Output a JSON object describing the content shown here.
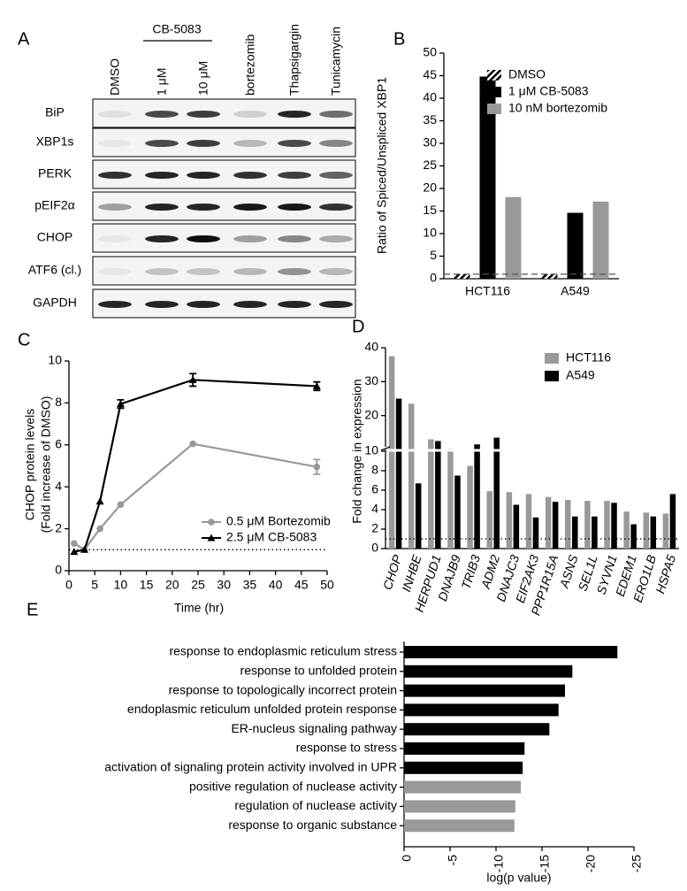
{
  "blot": {
    "label": "A",
    "group_label": "CB-5083",
    "columns": [
      "DMSO",
      "1 μM",
      "10 μM",
      "bortezomib",
      "Thapsigargin",
      "Tunicamycin"
    ],
    "rows": [
      "BiP",
      "XBP1s",
      "PERK",
      "pEIF2α",
      "CHOP",
      "ATF6 (cl.)",
      "GAPDH"
    ]
  },
  "chart_data": [
    {
      "type": "bar",
      "label": "B",
      "ylabel": "Ratio of Spiced/Unspliced XBP1",
      "categories": [
        "HCT116",
        "A549"
      ],
      "series": [
        {
          "name": "DMSO",
          "color": "#000000",
          "hatch": true,
          "values": [
            1,
            1
          ]
        },
        {
          "name": "1 μM CB-5083",
          "color": "#000000",
          "values": [
            44.8,
            14.6
          ]
        },
        {
          "name": "10 nM bortezomib",
          "color": "#999999",
          "values": [
            18.1,
            17.1
          ]
        }
      ],
      "ylim": [
        0,
        50
      ],
      "yticks": [
        0,
        5,
        10,
        15,
        20,
        25,
        30,
        35,
        40,
        45,
        50
      ],
      "reference_line": 1,
      "reference_style": "dashed",
      "grid": false
    },
    {
      "type": "line",
      "label": "C",
      "xlabel": "Time (hr)",
      "ylabel": [
        "CHOP protein levels",
        "(Fold increase of DMSO)"
      ],
      "x": [
        1,
        3,
        6,
        10,
        24,
        48
      ],
      "series": [
        {
          "name": "0.5 μM Bortezomib",
          "color": "#999999",
          "marker": "circle",
          "values": [
            1.3,
            1.0,
            2.0,
            3.15,
            6.05,
            4.95
          ],
          "errors": [
            0,
            0,
            0,
            0,
            0,
            0.35
          ]
        },
        {
          "name": "2.5 μM CB-5083",
          "color": "#000000",
          "marker": "triangle",
          "values": [
            0.9,
            1.0,
            3.3,
            7.95,
            9.1,
            8.8
          ],
          "errors": [
            0,
            0,
            0,
            0.2,
            0.3,
            0.2
          ]
        }
      ],
      "xlim": [
        0,
        50
      ],
      "xticks": [
        0,
        5,
        10,
        15,
        20,
        25,
        30,
        35,
        40,
        45,
        50
      ],
      "ylim": [
        0,
        10
      ],
      "yticks": [
        0,
        2,
        4,
        6,
        8,
        10
      ],
      "reference_line": 1,
      "reference_style": "dotted",
      "grid": false
    },
    {
      "type": "bar",
      "label": "D",
      "ylabel": "Fold change in expression",
      "categories": [
        "CHOP",
        "INHBE",
        "HERPUD1",
        "DNAJB9",
        "TRIB3",
        "ADM2",
        "DNAJC3",
        "EIF2AK3",
        "PPP1R15A",
        "ASNS",
        "SEL1L",
        "SYVN1",
        "EDEM1",
        "ERO1LB",
        "HSPA5"
      ],
      "series": [
        {
          "name": "HCT116",
          "color": "#999999",
          "values": [
            37.5,
            23.5,
            13,
            10.2,
            8.5,
            5.9,
            5.8,
            5.6,
            5.3,
            5.0,
            4.9,
            4.9,
            3.8,
            3.7,
            3.6
          ]
        },
        {
          "name": "A549",
          "color": "#000000",
          "values": [
            25,
            6.7,
            12.5,
            7.5,
            11.5,
            13.5,
            4.5,
            3.2,
            4.8,
            3.3,
            3.3,
            4.7,
            2.5,
            3.3,
            5.6
          ]
        }
      ],
      "ylim": [
        0,
        40
      ],
      "yticks": [
        0,
        2,
        4,
        6,
        8,
        10,
        20,
        30,
        40
      ],
      "y_break": 10,
      "reference_line": 1,
      "reference_style": "dotted",
      "grid": false
    },
    {
      "type": "barh",
      "label": "E",
      "xlabel": "log(p value)",
      "categories": [
        "response to endoplasmic reticulum stress",
        "response to unfolded protein",
        "response to topologically incorrect protein",
        "endoplasmic reticulum unfolded protein response",
        "ER-nucleus signaling pathway",
        "response to stress",
        "activation of signaling protein activity involved in UPR",
        "positive regulation of nuclease activity",
        "regulation of nuclease activity",
        "response to organic substance"
      ],
      "values": [
        -23.2,
        -18.3,
        -17.5,
        -16.8,
        -15.8,
        -13.1,
        -12.9,
        -12.7,
        -12.1,
        -12.0
      ],
      "colors": [
        "#000000",
        "#000000",
        "#000000",
        "#000000",
        "#000000",
        "#000000",
        "#000000",
        "#999999",
        "#999999",
        "#999999"
      ],
      "xlim": [
        0,
        -25
      ],
      "xticks": [
        0,
        -5,
        -10,
        -15,
        -20,
        -25
      ],
      "grid": false
    }
  ]
}
